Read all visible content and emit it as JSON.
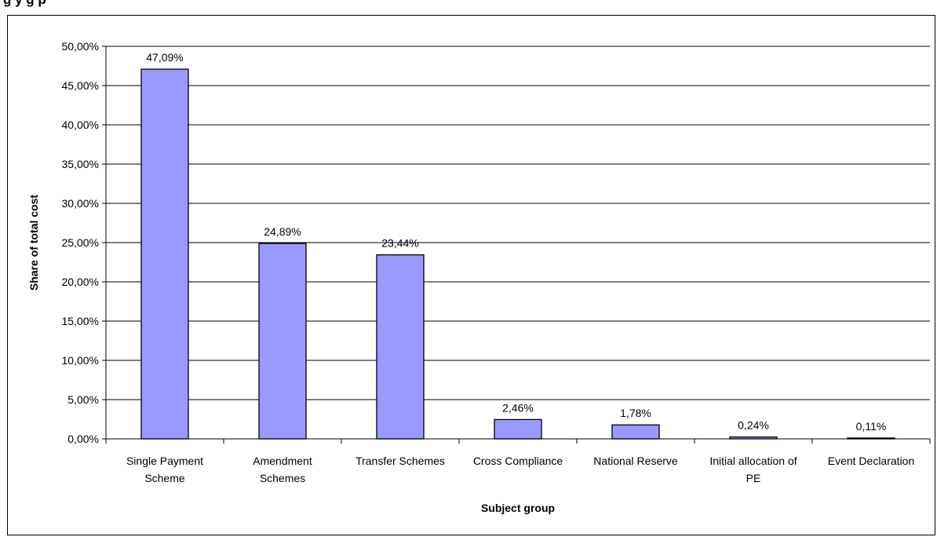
{
  "figure": {
    "caption_fragment": "g                                   y    g    p"
  },
  "chart_data": {
    "type": "bar",
    "categories": [
      [
        "Single Payment",
        "Scheme"
      ],
      [
        "Amendment",
        "Schemes"
      ],
      [
        "Transfer Schemes"
      ],
      [
        "Cross Compliance"
      ],
      [
        "National Reserve"
      ],
      [
        "Initial allocation of",
        "PE"
      ],
      [
        "Event Declaration"
      ]
    ],
    "values": [
      47.09,
      24.89,
      23.44,
      2.46,
      1.78,
      0.24,
      0.11
    ],
    "data_labels": [
      "47,09%",
      "24,89%",
      "23,44%",
      "2,46%",
      "1,78%",
      "0,24%",
      "0,11%"
    ],
    "ylim": [
      0,
      50
    ],
    "yticks": [
      {
        "value": 0,
        "label": "0,00%"
      },
      {
        "value": 5,
        "label": "5,00%"
      },
      {
        "value": 10,
        "label": "10,00%"
      },
      {
        "value": 15,
        "label": "15,00%"
      },
      {
        "value": 20,
        "label": "20,00%"
      },
      {
        "value": 25,
        "label": "25,00%"
      },
      {
        "value": 30,
        "label": "30,00%"
      },
      {
        "value": 35,
        "label": "35,00%"
      },
      {
        "value": 40,
        "label": "40,00%"
      },
      {
        "value": 45,
        "label": "45,00%"
      },
      {
        "value": 50,
        "label": "50,00%"
      }
    ],
    "xlabel": "Subject group",
    "ylabel": "Share of total cost",
    "grid": true,
    "legend": "none",
    "bar_color": "#9999ff",
    "bar_outline": "#000000"
  }
}
